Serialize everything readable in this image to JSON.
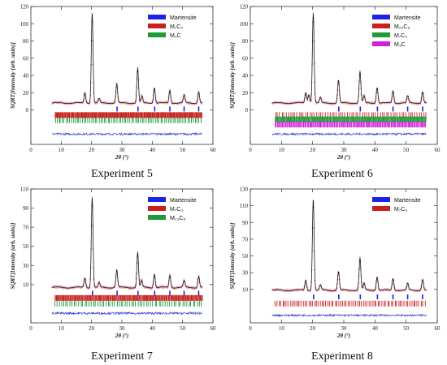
{
  "chart_data": [
    {
      "type": "line",
      "caption": "Experiment 5",
      "xlabel": "2θ (°)",
      "ylabel": "SQRT[Intensity (arb. units)]",
      "xlim": [
        0,
        60
      ],
      "ylim": [
        -40,
        120
      ],
      "xticks": [
        0,
        10,
        20,
        30,
        40,
        50,
        60
      ],
      "yticks": [
        0,
        20,
        40,
        60,
        80,
        100,
        120
      ],
      "ytick_labels": [
        "0",
        "20",
        "40",
        "60",
        "80",
        "100",
        "120"
      ],
      "baseline": 8,
      "peaks": [
        [
          17.8,
          12
        ],
        [
          20.2,
          104
        ],
        [
          22.5,
          5
        ],
        [
          28.3,
          22
        ],
        [
          35.2,
          40
        ],
        [
          36.6,
          8
        ],
        [
          40.7,
          18
        ],
        [
          45.8,
          15
        ],
        [
          50.5,
          9
        ],
        [
          55.3,
          13
        ]
      ],
      "legend": [
        {
          "label": "Martensite",
          "color": "#1e22e6"
        },
        {
          "label": "M₇C₃",
          "color": "#c8201c"
        },
        {
          "label": "M₃C",
          "color": "#1e9a3a"
        }
      ],
      "phase_ticks": [
        {
          "color": "#1e22e6",
          "y": 1,
          "positions": [
            28.4,
            35.3,
            40.8,
            45.8,
            50.5,
            55.3
          ]
        },
        {
          "color": "#c8201c",
          "y": -6,
          "density": 0.22
        },
        {
          "color": "#1e9a3a",
          "y": -12,
          "density": 0.6
        }
      ],
      "difference_y": -28
    },
    {
      "type": "line",
      "caption": "Experiment 6",
      "xlabel": "2θ (°)",
      "ylabel": "SQRT[Intensity (arb. units)]",
      "xlim": [
        0,
        60
      ],
      "ylim": [
        -40,
        120
      ],
      "xticks": [
        0,
        10,
        20,
        30,
        40,
        50,
        60
      ],
      "yticks": [
        0,
        20,
        40,
        60,
        80,
        100,
        120
      ],
      "ytick_labels": [
        "0",
        "20",
        "40",
        "60",
        "80",
        "100",
        "120"
      ],
      "baseline": 8,
      "peaks": [
        [
          17.8,
          12
        ],
        [
          18.8,
          10
        ],
        [
          20.2,
          104
        ],
        [
          22.5,
          6
        ],
        [
          28.3,
          26
        ],
        [
          35.2,
          36
        ],
        [
          36.5,
          8
        ],
        [
          40.7,
          18
        ],
        [
          45.8,
          14
        ],
        [
          50.5,
          8
        ],
        [
          55.3,
          13
        ]
      ],
      "legend": [
        {
          "label": "Martensite",
          "color": "#1e22e6"
        },
        {
          "label": "M₂₃C₆",
          "color": "#c8201c"
        },
        {
          "label": "M₇C₃",
          "color": "#1e9a3a"
        },
        {
          "label": "M₃C",
          "color": "#d21ed8"
        }
      ],
      "phase_ticks": [
        {
          "color": "#1e22e6",
          "y": 1,
          "positions": [
            28.4,
            35.3,
            40.8,
            45.8,
            50.5,
            55.3
          ]
        },
        {
          "color": "#c8201c",
          "y": -6,
          "density": 0.7
        },
        {
          "color": "#1e9a3a",
          "y": -11,
          "density": 0.22
        },
        {
          "color": "#d21ed8",
          "y": -17,
          "density": 0.3
        }
      ],
      "difference_y": -28
    },
    {
      "type": "line",
      "caption": "Experiment 7",
      "xlabel": "2θ (°)",
      "ylabel": "SQRT[Intensity (arb. units)]",
      "xlim": [
        0,
        60
      ],
      "ylim": [
        -30,
        110
      ],
      "xticks": [
        0,
        10,
        20,
        30,
        40,
        50,
        60
      ],
      "yticks": [
        10,
        30,
        50,
        70,
        90,
        110
      ],
      "ytick_labels": [
        "10",
        "30",
        "50",
        "70",
        "90",
        "110"
      ],
      "baseline": 7,
      "peaks": [
        [
          17.8,
          10
        ],
        [
          20.2,
          94
        ],
        [
          22.5,
          5
        ],
        [
          28.3,
          18
        ],
        [
          35.2,
          36
        ],
        [
          36.5,
          7
        ],
        [
          40.7,
          14
        ],
        [
          45.8,
          13
        ],
        [
          50.5,
          7
        ],
        [
          55.3,
          12
        ]
      ],
      "legend": [
        {
          "label": "Martensite",
          "color": "#1e22e6"
        },
        {
          "label": "M₇C₃",
          "color": "#c8201c"
        },
        {
          "label": "M₂₃C₆",
          "color": "#1e9a3a"
        }
      ],
      "phase_ticks": [
        {
          "color": "#1e22e6",
          "y": 1,
          "positions": [
            20.3,
            28.4,
            35.3,
            40.8,
            45.8,
            50.5,
            55.3
          ]
        },
        {
          "color": "#c8201c",
          "y": -4,
          "density": 0.25
        },
        {
          "color": "#1e9a3a",
          "y": -10,
          "density": 0.7
        }
      ],
      "difference_y": -20
    },
    {
      "type": "line",
      "caption": "Experiment 8",
      "xlabel": "2θ (°)",
      "ylabel": "SQRT[Intensity (arb. units)]",
      "xlim": [
        0,
        60
      ],
      "ylim": [
        -30,
        130
      ],
      "xticks": [
        0,
        10,
        20,
        30,
        40,
        50,
        60
      ],
      "yticks": [
        10,
        30,
        50,
        70,
        90,
        110,
        130
      ],
      "ytick_labels": [
        "10",
        "30",
        "50",
        "70",
        "90",
        "110",
        "130"
      ],
      "baseline": 9,
      "peaks": [
        [
          17.8,
          12
        ],
        [
          20.2,
          108
        ],
        [
          22.5,
          6
        ],
        [
          28.3,
          22
        ],
        [
          35.2,
          38
        ],
        [
          36.5,
          8
        ],
        [
          40.7,
          16
        ],
        [
          45.8,
          14
        ],
        [
          50.5,
          8
        ],
        [
          55.3,
          13
        ]
      ],
      "legend": [
        {
          "label": "Martensite",
          "color": "#1e22e6"
        },
        {
          "label": "M₇C₃",
          "color": "#c8201c"
        }
      ],
      "phase_ticks": [
        {
          "color": "#1e22e6",
          "y": 1,
          "positions": [
            20.3,
            28.4,
            35.3,
            40.8,
            45.8,
            50.5,
            55.3
          ]
        },
        {
          "color": "#c8201c",
          "y": -7,
          "density": 0.6
        }
      ],
      "difference_y": -21
    }
  ]
}
